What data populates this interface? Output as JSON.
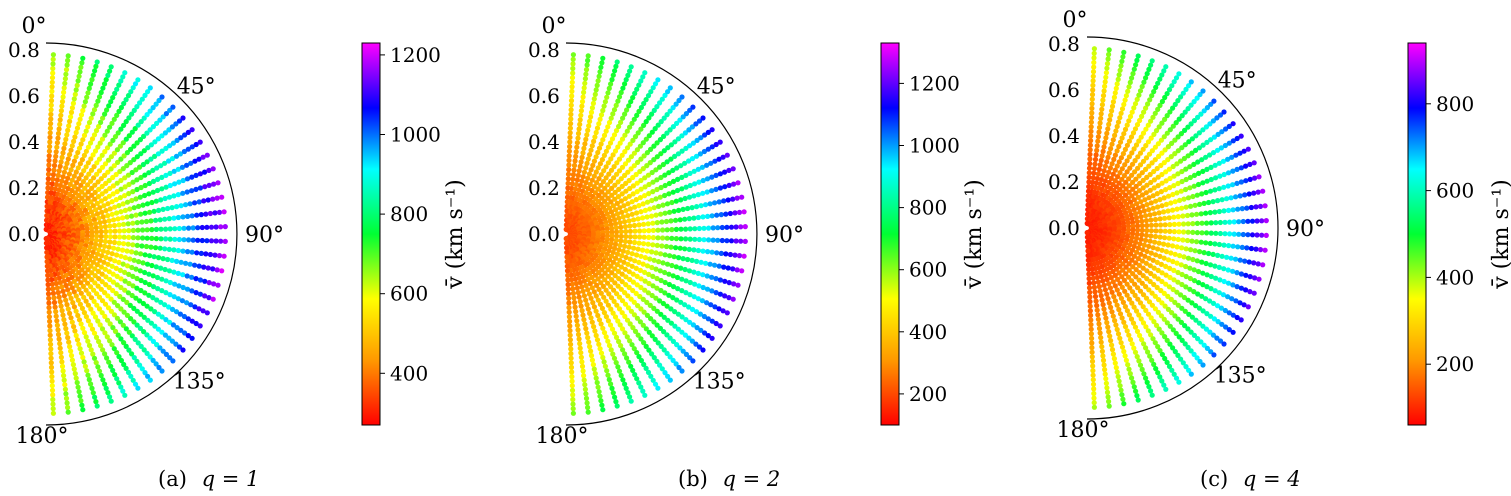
{
  "chart_data": [
    {
      "type": "scatter",
      "subplot": "a",
      "caption_label": "(a)",
      "caption_math": "q = 1",
      "q": 1,
      "radial_ticks": [
        "0.0",
        "0.2",
        "0.4",
        "0.6",
        "0.8"
      ],
      "radial_range": [
        0,
        0.83
      ],
      "angle_labels": [
        "0°",
        "45°",
        "90°",
        "135°",
        "180°"
      ],
      "colorbar_ticks": [
        "400",
        "600",
        "800",
        "1000",
        "1200"
      ],
      "colorbar_range": [
        270,
        1230
      ],
      "colorbar_label": "v̄ (km s⁻¹)",
      "colormap": "gist_rainbow_r",
      "value_model": {
        "center": 300,
        "edge": 1230,
        "exponent": 1.3,
        "noise": 70
      }
    },
    {
      "type": "scatter",
      "subplot": "b",
      "caption_label": "(b)",
      "caption_math": "q = 2",
      "q": 2,
      "radial_ticks": [
        "0.0",
        "0.2",
        "0.4",
        "0.6",
        "0.8"
      ],
      "radial_range": [
        0,
        0.83
      ],
      "angle_labels": [
        "0°",
        "45°",
        "90°",
        "135°",
        "180°"
      ],
      "colorbar_ticks": [
        "200",
        "400",
        "600",
        "800",
        "1000",
        "1200"
      ],
      "colorbar_range": [
        100,
        1330
      ],
      "colorbar_label": "v̄ (km s⁻¹)",
      "colormap": "gist_rainbow_r",
      "value_model": {
        "center": 200,
        "edge": 1320,
        "exponent": 1.6,
        "noise": 40
      }
    },
    {
      "type": "scatter",
      "subplot": "c",
      "caption_label": "(c)",
      "caption_math": "q = 4",
      "q": 4,
      "radial_ticks": [
        "0.0",
        "0.2",
        "0.4",
        "0.6",
        "0.8"
      ],
      "radial_range": [
        0,
        0.83
      ],
      "angle_labels": [
        "0°",
        "45°",
        "90°",
        "135°",
        "180°"
      ],
      "colorbar_ticks": [
        "200",
        "400",
        "600",
        "800"
      ],
      "colorbar_range": [
        60,
        940
      ],
      "colorbar_label": "v̄ (km s⁻¹)",
      "colormap": "gist_rainbow_r",
      "value_model": {
        "center": 90,
        "edge": 930,
        "exponent": 1.7,
        "noise": 25
      }
    }
  ]
}
